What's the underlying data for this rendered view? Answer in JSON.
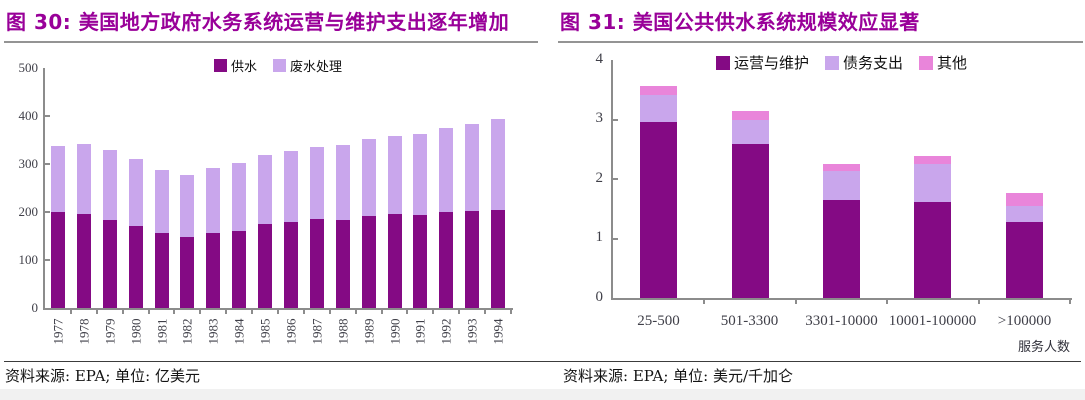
{
  "styles": {
    "title_color": "#990099",
    "axis_color": "#8C8C8C",
    "tick_label_color": "#3F3F48",
    "source_color": "#141414",
    "title_rule_color": "#949494",
    "source_rule_color": "#3C3C3C",
    "bottom_strip_color": "#F1F1F1",
    "bar_dark_purple": "#840A84",
    "bar_light_lavender": "#C9A6EC",
    "bar_pink": "#E985DA"
  },
  "chart_data": [
    {
      "id": "fig30",
      "type": "bar",
      "stacked": true,
      "title": "图 30: 美国地方政府水务系统运营与维护支出逐年增加",
      "source": "资料来源: EPA; 单位: 亿美元",
      "categories": [
        "1977",
        "1978",
        "1979",
        "1980",
        "1981",
        "1982",
        "1983",
        "1984",
        "1985",
        "1986",
        "1987",
        "1988",
        "1989",
        "1990",
        "1991",
        "1992",
        "1993",
        "1994"
      ],
      "series": [
        {
          "name": "供水",
          "color": "#840A84",
          "values": [
            200,
            195,
            183,
            171,
            157,
            148,
            156,
            161,
            175,
            179,
            185,
            183,
            192,
            196,
            193,
            199,
            203,
            205
          ]
        },
        {
          "name": "废水处理",
          "color": "#C9A6EC",
          "values": [
            138,
            147,
            147,
            140,
            131,
            130,
            136,
            141,
            144,
            149,
            150,
            156,
            160,
            163,
            169,
            175,
            180,
            189
          ]
        }
      ],
      "ylim": [
        0,
        500
      ],
      "yticks": [
        0,
        100,
        200,
        300,
        400,
        500
      ],
      "legend_position": "top",
      "grid": false,
      "xlabel": "",
      "ylabel": ""
    },
    {
      "id": "fig31",
      "type": "bar",
      "stacked": true,
      "title": "图 31: 美国公共供水系统规模效应显著",
      "source": "资料来源: EPA; 单位: 美元/千加仑",
      "categories": [
        "25-500",
        "501-3300",
        "3301-10000",
        "10001-100000",
        ">100000"
      ],
      "series": [
        {
          "name": "运营与维护",
          "color": "#840A84",
          "values": [
            2.96,
            2.59,
            1.65,
            1.61,
            1.27
          ]
        },
        {
          "name": "债务支出",
          "color": "#C9A6EC",
          "values": [
            0.45,
            0.41,
            0.49,
            0.64,
            0.28
          ]
        },
        {
          "name": "其他",
          "color": "#E985DA",
          "values": [
            0.16,
            0.15,
            0.12,
            0.13,
            0.21
          ]
        }
      ],
      "ylim": [
        0,
        4
      ],
      "yticks": [
        0,
        1,
        2,
        3,
        4
      ],
      "legend_position": "top",
      "grid": false,
      "xlabel": "服务人数",
      "ylabel": ""
    }
  ]
}
